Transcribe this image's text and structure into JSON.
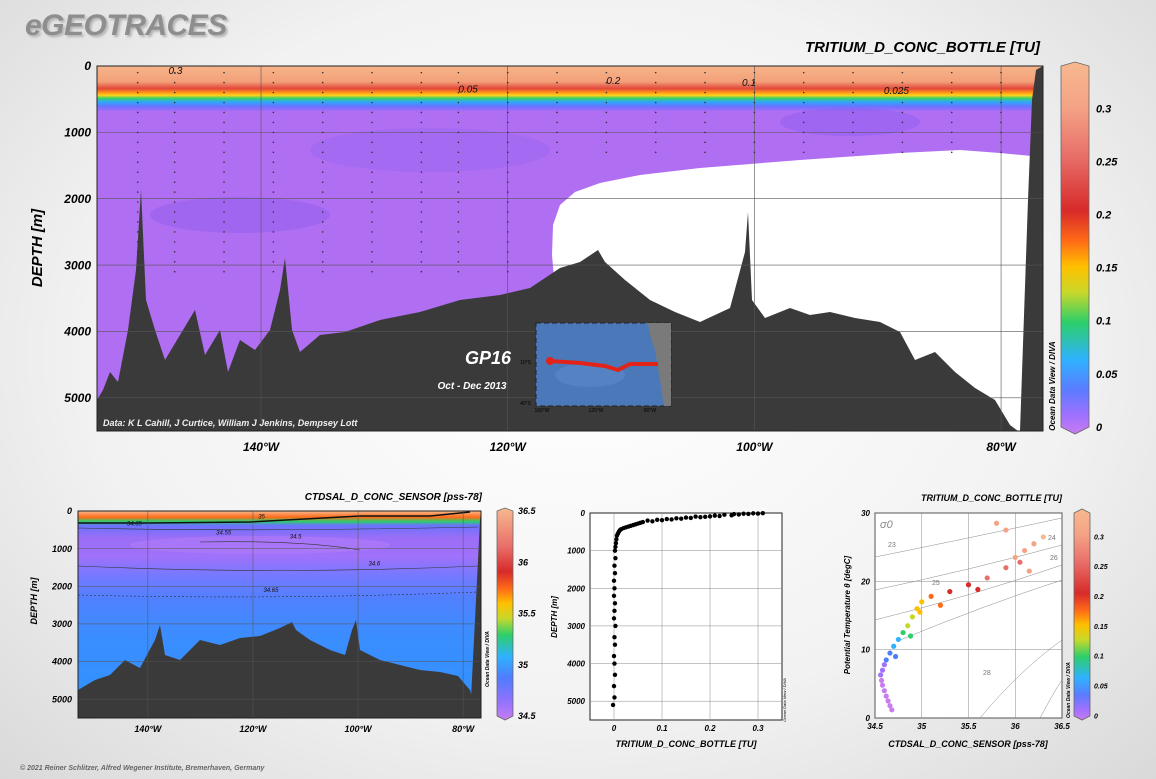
{
  "logo": "eGEOTRACES",
  "footer": "© 2021 Reiner Schlitzer, Alfred Wegener Institute, Bremerhaven, Germany",
  "colorbar_credit": "Ocean Data View / DIVA",
  "colors": {
    "background": "#ececec",
    "bathymetry": "#3a3a3a",
    "no_data": "#ffffff",
    "colormap": [
      "#c87cf0",
      "#a070ff",
      "#4f7dff",
      "#2fb2ff",
      "#2ccf6a",
      "#c8d82a",
      "#ffc000",
      "#ff6a18",
      "#d72a2a",
      "#e8706a",
      "#f4a386",
      "#f7b98e"
    ],
    "track": "#e2231a"
  },
  "chart_data": [
    {
      "id": "main-section",
      "type": "heatmap",
      "title": "TRITIUM_D_CONC_BOTTLE [TU]",
      "ylabel": "DEPTH [m]",
      "x_ticks": [
        "140°W",
        "120°W",
        "100°W",
        "80°W"
      ],
      "y_ticks": [
        "0",
        "1000",
        "2000",
        "3000",
        "4000",
        "5000"
      ],
      "xlim": [
        -153.3,
        -76.6
      ],
      "ylim": [
        5500,
        0
      ],
      "colorbar": {
        "range": [
          0,
          0.34
        ],
        "ticks": [
          "0",
          "0.05",
          "0.1",
          "0.15",
          "0.2",
          "0.25",
          "0.3"
        ]
      },
      "contour_labels": [
        {
          "text": "0.3",
          "lon": -147.5,
          "depth": 120
        },
        {
          "text": "0.2",
          "lon": -112,
          "depth": 270
        },
        {
          "text": "0.05",
          "lon": -124,
          "depth": 400
        },
        {
          "text": "0.1",
          "lon": -101,
          "depth": 300
        },
        {
          "text": "0.025",
          "lon": -89.5,
          "depth": 420
        }
      ],
      "credit": "Data: K L Cahill, J Curtice, William J Jenkins, Dempsey Lott",
      "cruise": "GP16",
      "period": "Oct - Dec 2013",
      "inset_map": {
        "lat_ticks": [
          "10°S",
          "40°S"
        ],
        "lon_ticks": [
          "160°W",
          "120°W",
          "80°W"
        ]
      }
    },
    {
      "id": "salinity-section",
      "type": "heatmap",
      "title": "CTDSAL_D_CONC_SENSOR [pss-78]",
      "ylabel": "DEPTH [m]",
      "x_ticks": [
        "140°W",
        "120°W",
        "100°W",
        "80°W"
      ],
      "y_ticks": [
        "0",
        "1000",
        "2000",
        "3000",
        "4000",
        "5000"
      ],
      "xlim": [
        -153.3,
        -76.6
      ],
      "ylim": [
        5500,
        0
      ],
      "colorbar": {
        "range": [
          34.5,
          36.5
        ],
        "ticks": [
          "34.5",
          "35",
          "35.5",
          "36",
          "36.5"
        ]
      },
      "contour_labels": [
        {
          "text": "35",
          "lon": -119,
          "depth": 200
        },
        {
          "text": "34.65",
          "lon": -144,
          "depth": 380
        },
        {
          "text": "34.55",
          "lon": -127,
          "depth": 630
        },
        {
          "text": "34.5",
          "lon": -113,
          "depth": 730
        },
        {
          "text": "34.6",
          "lon": -98,
          "depth": 1450
        },
        {
          "text": "34.65",
          "lon": -118,
          "depth": 2150
        }
      ]
    },
    {
      "id": "tritium-profile",
      "type": "scatter",
      "xlabel": "TRITIUM_D_CONC_BOTTLE [TU]",
      "ylabel": "DEPTH [m]",
      "xlim": [
        -0.05,
        0.35
      ],
      "ylim": [
        5500,
        0
      ],
      "x_ticks": [
        "0",
        "0.1",
        "0.2",
        "0.3"
      ],
      "y_ticks": [
        "0",
        "1000",
        "2000",
        "3000",
        "4000",
        "5000"
      ],
      "points": [
        [
          0.31,
          5
        ],
        [
          0.3,
          15
        ],
        [
          0.29,
          10
        ],
        [
          0.28,
          25
        ],
        [
          0.27,
          20
        ],
        [
          0.26,
          40
        ],
        [
          0.25,
          30
        ],
        [
          0.245,
          60
        ],
        [
          0.23,
          45
        ],
        [
          0.22,
          80
        ],
        [
          0.21,
          70
        ],
        [
          0.2,
          90
        ],
        [
          0.19,
          100
        ],
        [
          0.18,
          110
        ],
        [
          0.17,
          95
        ],
        [
          0.16,
          130
        ],
        [
          0.15,
          120
        ],
        [
          0.14,
          150
        ],
        [
          0.13,
          140
        ],
        [
          0.12,
          170
        ],
        [
          0.11,
          160
        ],
        [
          0.1,
          190
        ],
        [
          0.09,
          180
        ],
        [
          0.08,
          220
        ],
        [
          0.07,
          200
        ],
        [
          0.06,
          240
        ],
        [
          0.055,
          260
        ],
        [
          0.05,
          280
        ],
        [
          0.045,
          300
        ],
        [
          0.04,
          320
        ],
        [
          0.035,
          340
        ],
        [
          0.03,
          360
        ],
        [
          0.025,
          380
        ],
        [
          0.02,
          400
        ],
        [
          0.015,
          430
        ],
        [
          0.012,
          460
        ],
        [
          0.01,
          500
        ],
        [
          0.008,
          550
        ],
        [
          0.006,
          600
        ],
        [
          0.005,
          700
        ],
        [
          0.004,
          800
        ],
        [
          0.003,
          900
        ],
        [
          0.002,
          1000
        ],
        [
          0.003,
          1200
        ],
        [
          0.001,
          1400
        ],
        [
          0.002,
          1600
        ],
        [
          0.0,
          1800
        ],
        [
          0.001,
          2000
        ],
        [
          0.0,
          2200
        ],
        [
          0.002,
          2400
        ],
        [
          0.001,
          2600
        ],
        [
          0.0,
          2800
        ],
        [
          0.003,
          3000
        ],
        [
          0.001,
          3300
        ],
        [
          0.002,
          3500
        ],
        [
          0.0,
          3800
        ],
        [
          0.001,
          4000
        ],
        [
          0.002,
          4300
        ],
        [
          0.0,
          4600
        ],
        [
          0.001,
          4900
        ],
        [
          -0.002,
          5100
        ]
      ]
    },
    {
      "id": "ts-diagram",
      "type": "scatter",
      "title": "TRITIUM_D_CONC_BOTTLE [TU]",
      "xlabel": "CTDSAL_D_CONC_SENSOR [pss-78]",
      "ylabel": "Potential Temperature θ [degC]",
      "xlim": [
        34.5,
        36.5
      ],
      "ylim": [
        0,
        30
      ],
      "x_ticks": [
        "34.5",
        "35",
        "35.5",
        "36",
        "36.5"
      ],
      "y_ticks": [
        "0",
        "10",
        "20",
        "30"
      ],
      "isopycnal_symbol": "σ0",
      "isopycnal_labels": [
        "23",
        "24",
        "25",
        "26",
        "28"
      ],
      "colorbar": {
        "range": [
          0,
          0.34
        ],
        "ticks": [
          "0",
          "0.05",
          "0.1",
          "0.15",
          "0.2",
          "0.25",
          "0.3"
        ]
      },
      "points": [
        [
          34.68,
          1.2,
          0.0
        ],
        [
          34.66,
          1.8,
          0.0
        ],
        [
          34.64,
          2.5,
          0.0
        ],
        [
          34.62,
          3.2,
          0.0
        ],
        [
          34.6,
          4.0,
          0.005
        ],
        [
          34.58,
          4.8,
          0.01
        ],
        [
          34.57,
          5.5,
          0.015
        ],
        [
          34.56,
          6.3,
          0.02
        ],
        [
          34.58,
          7.0,
          0.03
        ],
        [
          34.6,
          7.8,
          0.04
        ],
        [
          34.62,
          8.5,
          0.05
        ],
        [
          34.66,
          9.5,
          0.07
        ],
        [
          34.7,
          10.5,
          0.08
        ],
        [
          34.75,
          11.5,
          0.1
        ],
        [
          34.8,
          12.5,
          0.12
        ],
        [
          34.85,
          13.5,
          0.14
        ],
        [
          34.9,
          14.8,
          0.16
        ],
        [
          34.95,
          16.0,
          0.18
        ],
        [
          35.0,
          17.0,
          0.2
        ],
        [
          35.1,
          17.8,
          0.22
        ],
        [
          35.3,
          18.5,
          0.24
        ],
        [
          35.5,
          19.5,
          0.25
        ],
        [
          35.7,
          20.5,
          0.27
        ],
        [
          35.9,
          22.0,
          0.28
        ],
        [
          36.0,
          23.5,
          0.3
        ],
        [
          36.1,
          24.5,
          0.31
        ],
        [
          36.2,
          25.5,
          0.32
        ],
        [
          36.3,
          26.5,
          0.33
        ],
        [
          35.9,
          27.5,
          0.32
        ],
        [
          35.8,
          28.5,
          0.31
        ],
        [
          36.05,
          22.8,
          0.29
        ],
        [
          36.15,
          21.5,
          0.3
        ],
        [
          35.6,
          18.8,
          0.24
        ],
        [
          35.2,
          16.5,
          0.21
        ],
        [
          34.98,
          15.5,
          0.19
        ],
        [
          34.88,
          12.0,
          0.13
        ],
        [
          34.72,
          9.0,
          0.07
        ]
      ]
    }
  ]
}
